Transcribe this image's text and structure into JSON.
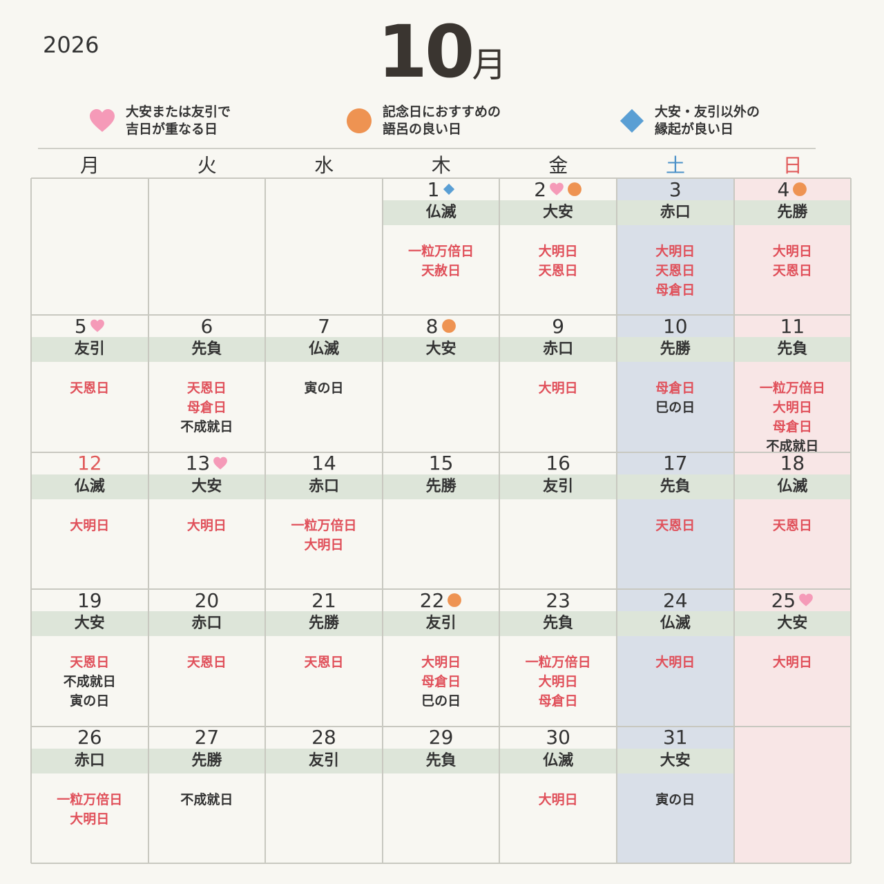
{
  "header": {
    "year": "2026",
    "month_number": "10",
    "month_suffix": "月"
  },
  "legend": [
    {
      "icon": "heart",
      "color": "#f59ab8",
      "lines": [
        "大安または友引で",
        "吉日が重なる日"
      ]
    },
    {
      "icon": "circle",
      "color": "#ee9352",
      "lines": [
        "記念日におすすめの",
        "語呂の良い日"
      ]
    },
    {
      "icon": "diamond",
      "color": "#5a9fd4",
      "lines": [
        "大安・友引以外の",
        "縁起が良い日"
      ]
    }
  ],
  "weekdays": [
    {
      "label": "月",
      "color": "#333333"
    },
    {
      "label": "火",
      "color": "#333333"
    },
    {
      "label": "水",
      "color": "#333333"
    },
    {
      "label": "木",
      "color": "#333333"
    },
    {
      "label": "金",
      "color": "#333333"
    },
    {
      "label": "土",
      "color": "#4a90c8",
      "background": "#d9dfe8"
    },
    {
      "label": "日",
      "color": "#e05a5a",
      "background": "#f8e6e6"
    }
  ],
  "days": [
    {
      "day": "1",
      "rokuyo": "仏滅",
      "marks": [
        "diamond"
      ],
      "items": [
        {
          "text": "一粒万倍日",
          "color": "#e0505a"
        },
        {
          "text": "天赦日",
          "color": "#e0505a"
        }
      ]
    },
    {
      "day": "2",
      "rokuyo": "大安",
      "marks": [
        "heart",
        "circle"
      ],
      "items": [
        {
          "text": "大明日",
          "color": "#e0505a"
        },
        {
          "text": "天恩日",
          "color": "#e0505a"
        }
      ]
    },
    {
      "day": "3",
      "rokuyo": "赤口",
      "marks": [],
      "items": [
        {
          "text": "大明日",
          "color": "#e0505a"
        },
        {
          "text": "天恩日",
          "color": "#e0505a"
        },
        {
          "text": "母倉日",
          "color": "#e0505a"
        }
      ]
    },
    {
      "day": "4",
      "rokuyo": "先勝",
      "marks": [
        "circle"
      ],
      "items": [
        {
          "text": "大明日",
          "color": "#e0505a"
        },
        {
          "text": "天恩日",
          "color": "#e0505a"
        }
      ]
    },
    {
      "day": "5",
      "rokuyo": "友引",
      "marks": [
        "heart"
      ],
      "items": [
        {
          "text": "天恩日",
          "color": "#e0505a"
        }
      ]
    },
    {
      "day": "6",
      "rokuyo": "先負",
      "marks": [],
      "items": [
        {
          "text": "天恩日",
          "color": "#e0505a"
        },
        {
          "text": "母倉日",
          "color": "#e0505a"
        },
        {
          "text": "不成就日",
          "color": "#333333"
        }
      ]
    },
    {
      "day": "7",
      "rokuyo": "仏滅",
      "marks": [],
      "items": [
        {
          "text": "寅の日",
          "color": "#333333"
        }
      ]
    },
    {
      "day": "8",
      "rokuyo": "大安",
      "marks": [
        "circle"
      ],
      "items": []
    },
    {
      "day": "9",
      "rokuyo": "赤口",
      "marks": [],
      "items": [
        {
          "text": "大明日",
          "color": "#e0505a"
        }
      ]
    },
    {
      "day": "10",
      "rokuyo": "先勝",
      "marks": [],
      "items": [
        {
          "text": "母倉日",
          "color": "#e0505a"
        },
        {
          "text": "巳の日",
          "color": "#333333"
        }
      ]
    },
    {
      "day": "11",
      "rokuyo": "先負",
      "marks": [],
      "items": [
        {
          "text": "一粒万倍日",
          "color": "#e0505a"
        },
        {
          "text": "大明日",
          "color": "#e0505a"
        },
        {
          "text": "母倉日",
          "color": "#e0505a"
        },
        {
          "text": "不成就日",
          "color": "#333333"
        }
      ]
    },
    {
      "day": "12",
      "rokuyo": "仏滅",
      "marks": [],
      "number_color": "#e05a5a",
      "items": [
        {
          "text": "大明日",
          "color": "#e0505a"
        }
      ]
    },
    {
      "day": "13",
      "rokuyo": "大安",
      "marks": [
        "heart"
      ],
      "items": [
        {
          "text": "大明日",
          "color": "#e0505a"
        }
      ]
    },
    {
      "day": "14",
      "rokuyo": "赤口",
      "marks": [],
      "items": [
        {
          "text": "一粒万倍日",
          "color": "#e0505a"
        },
        {
          "text": "大明日",
          "color": "#e0505a"
        }
      ]
    },
    {
      "day": "15",
      "rokuyo": "先勝",
      "marks": [],
      "items": []
    },
    {
      "day": "16",
      "rokuyo": "友引",
      "marks": [],
      "items": []
    },
    {
      "day": "17",
      "rokuyo": "先負",
      "marks": [],
      "items": [
        {
          "text": "天恩日",
          "color": "#e0505a"
        }
      ]
    },
    {
      "day": "18",
      "rokuyo": "仏滅",
      "marks": [],
      "items": [
        {
          "text": "天恩日",
          "color": "#e0505a"
        }
      ]
    },
    {
      "day": "19",
      "rokuyo": "大安",
      "marks": [],
      "items": [
        {
          "text": "天恩日",
          "color": "#e0505a"
        },
        {
          "text": "不成就日",
          "color": "#333333"
        },
        {
          "text": "寅の日",
          "color": "#333333"
        }
      ]
    },
    {
      "day": "20",
      "rokuyo": "赤口",
      "marks": [],
      "items": [
        {
          "text": "天恩日",
          "color": "#e0505a"
        }
      ]
    },
    {
      "day": "21",
      "rokuyo": "先勝",
      "marks": [],
      "items": [
        {
          "text": "天恩日",
          "color": "#e0505a"
        }
      ]
    },
    {
      "day": "22",
      "rokuyo": "友引",
      "marks": [
        "circle"
      ],
      "items": [
        {
          "text": "大明日",
          "color": "#e0505a"
        },
        {
          "text": "母倉日",
          "color": "#e0505a"
        },
        {
          "text": "巳の日",
          "color": "#333333"
        }
      ]
    },
    {
      "day": "23",
      "rokuyo": "先負",
      "marks": [],
      "items": [
        {
          "text": "一粒万倍日",
          "color": "#e0505a"
        },
        {
          "text": "大明日",
          "color": "#e0505a"
        },
        {
          "text": "母倉日",
          "color": "#e0505a"
        }
      ]
    },
    {
      "day": "24",
      "rokuyo": "仏滅",
      "marks": [],
      "items": [
        {
          "text": "大明日",
          "color": "#e0505a"
        }
      ]
    },
    {
      "day": "25",
      "rokuyo": "大安",
      "marks": [
        "heart"
      ],
      "items": [
        {
          "text": "大明日",
          "color": "#e0505a"
        }
      ]
    },
    {
      "day": "26",
      "rokuyo": "赤口",
      "marks": [],
      "items": [
        {
          "text": "一粒万倍日",
          "color": "#e0505a"
        },
        {
          "text": "大明日",
          "color": "#e0505a"
        }
      ]
    },
    {
      "day": "27",
      "rokuyo": "先勝",
      "marks": [],
      "items": [
        {
          "text": "不成就日",
          "color": "#333333"
        }
      ]
    },
    {
      "day": "28",
      "rokuyo": "友引",
      "marks": [],
      "items": []
    },
    {
      "day": "29",
      "rokuyo": "先負",
      "marks": [],
      "items": []
    },
    {
      "day": "30",
      "rokuyo": "仏滅",
      "marks": [],
      "items": [
        {
          "text": "大明日",
          "color": "#e0505a"
        }
      ]
    },
    {
      "day": "31",
      "rokuyo": "大安",
      "marks": [],
      "items": [
        {
          "text": "寅の日",
          "color": "#333333"
        }
      ]
    }
  ]
}
